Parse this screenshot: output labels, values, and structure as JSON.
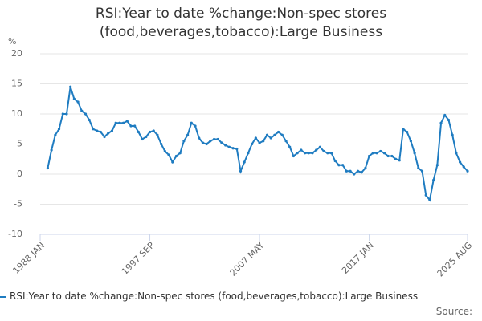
{
  "chart_data": {
    "type": "line",
    "title": "RSI:Year to date %change:Non-spec stores (food,beverages,tobacco):Large Business",
    "ylabel": "%",
    "source": "Source:",
    "categories": [
      "1988 JAN",
      null,
      null,
      null,
      null,
      null,
      null,
      null,
      null,
      null,
      null,
      null,
      null,
      null,
      null,
      null,
      null,
      null,
      null,
      null,
      null,
      null,
      null,
      null,
      null,
      null,
      null,
      null,
      null,
      "1997 SEP",
      null,
      null,
      null,
      null,
      null,
      null,
      null,
      null,
      null,
      null,
      null,
      null,
      null,
      null,
      null,
      null,
      null,
      null,
      null,
      null,
      null,
      null,
      null,
      null,
      null,
      null,
      null,
      null,
      "2007 MAY",
      null,
      null,
      null,
      null,
      null,
      null,
      null,
      null,
      null,
      null,
      null,
      null,
      null,
      null,
      null,
      null,
      null,
      null,
      null,
      null,
      null,
      null,
      null,
      null,
      null,
      null,
      null,
      null,
      "2017 JAN",
      null,
      null,
      null,
      null,
      null,
      null,
      null,
      null,
      null,
      null,
      null,
      null,
      null,
      null,
      null,
      null,
      null,
      null,
      null,
      null,
      null,
      null,
      null,
      null,
      null,
      "2025 AUG"
    ],
    "series": [
      {
        "name": "RSI:Year to date %change:Non-spec stores (food,beverages,tobacco):Large Business",
        "color": "#1f7cc1",
        "values": [
          null,
          null,
          1.0,
          4,
          6.5,
          7.5,
          10,
          10,
          14.5,
          12.5,
          12,
          10.5,
          10,
          9,
          7.5,
          7.2,
          7,
          6.2,
          6.8,
          7.2,
          8.5,
          8.5,
          8.5,
          8.8,
          8,
          8,
          7,
          5.8,
          6.2,
          7,
          7.2,
          6.5,
          5,
          3.8,
          3.2,
          2,
          3,
          3.5,
          5.5,
          6.5,
          8.5,
          8,
          6,
          5.2,
          5,
          5.5,
          5.8,
          5.8,
          5.2,
          4.8,
          4.5,
          4.3,
          4.2,
          0.5,
          2,
          3.5,
          5,
          6,
          5.2,
          5.5,
          6.5,
          6,
          6.5,
          7,
          6.5,
          5.5,
          4.5,
          3,
          3.5,
          4,
          3.5,
          3.5,
          3.5,
          4,
          4.5,
          3.8,
          3.5,
          3.5,
          2.2,
          1.5,
          1.5,
          0.5,
          0.5,
          0,
          0.5,
          0.3,
          1,
          3,
          3.5,
          3.5,
          3.8,
          3.5,
          3,
          3,
          2.5,
          2.3,
          7.5,
          7,
          5.5,
          3.5,
          1,
          0.5,
          -3.5,
          -4.3,
          -1,
          1.5,
          8.5,
          9.8,
          9,
          6.5,
          3.5,
          2,
          1.2,
          0.5
        ]
      }
    ],
    "ylim": [
      -10,
      20
    ],
    "yticks": [
      -10,
      -5,
      0,
      5,
      10,
      15,
      20
    ],
    "grid": true
  }
}
